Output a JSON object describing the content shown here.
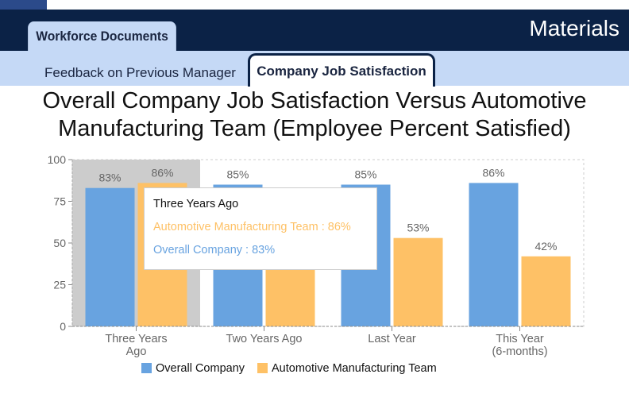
{
  "header": {
    "tab_active": "Workforce Documents",
    "title": "Materials"
  },
  "subtabs": [
    {
      "label": "Feedback on Previous Manager"
    },
    {
      "label": "Company Job Satisfaction"
    }
  ],
  "chart_data": {
    "type": "bar",
    "title": "Overall Company Job Satisfaction Versus Automotive Manufacturing Team (Employee Percent Satisfied)",
    "categories": [
      [
        "Three Years",
        "Ago"
      ],
      [
        "Two Years Ago"
      ],
      [
        "Last Year"
      ],
      [
        "This Year",
        "(6-months)"
      ]
    ],
    "series": [
      {
        "name": "Overall Company",
        "color": "#68a3e0",
        "values": [
          83,
          85,
          85,
          86
        ]
      },
      {
        "name": "Automotive Manufacturing Team",
        "color": "#fec166",
        "values": [
          86,
          null,
          53,
          42
        ]
      }
    ],
    "ylim": [
      0,
      100
    ],
    "yticks": [
      0,
      25,
      50,
      75,
      100
    ],
    "legend": "bottom",
    "grid": false,
    "highlighted_category": 0
  },
  "tooltip": {
    "title": "Three Years Ago",
    "line1": "Automotive Manufacturing Team : 86%",
    "line2": "Overall Company : 83%"
  }
}
